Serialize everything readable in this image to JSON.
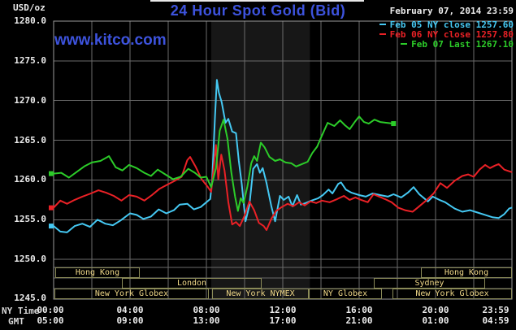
{
  "header": {
    "unit_label": "USD/oz",
    "title": "24 Hour Spot Gold (Bid)",
    "datetime": "February 07, 2014 23:59",
    "watermark": "www.kitco.com"
  },
  "legend": [
    {
      "text": "Feb 05 NY close 1257.60",
      "color": "#45c8f2"
    },
    {
      "text": "Feb 06 NY close 1257.80",
      "color": "#ea2126"
    },
    {
      "text": "Feb 07 Last 1267.10",
      "color": "#2ccc29"
    }
  ],
  "y_axis": {
    "labels": [
      "1280.0",
      "1275.0",
      "1270.0",
      "1265.0",
      "1260.0",
      "1255.0",
      "1250.0",
      "1245.0"
    ]
  },
  "x_axis": {
    "ny_label": "NY Time",
    "gmt_label": "GMT",
    "ny_ticks": [
      "00:00",
      "04:00",
      "08:00",
      "12:00",
      "16:00",
      "20:00",
      "23:59"
    ],
    "gmt_ticks": [
      "05:00",
      "09:00",
      "13:00",
      "17:00",
      "21:00",
      "01:00",
      "04:59"
    ]
  },
  "sessions": {
    "hong_kong_am": "Hong Kong",
    "hong_kong_pm": "Hong Kong",
    "london": "London",
    "sydney": "Sydney",
    "new_york_globex_early": "New York Globex",
    "new_york_nymex": "New York NYMEX",
    "ny_globex": "NY Globex",
    "new_york_globex_late": "New York Globex"
  },
  "chart_data": {
    "type": "line",
    "title": "24 Hour Spot Gold (Bid)",
    "ylabel": "USD/oz",
    "x_unit": "hours, NY time (00:00-23:59)",
    "xlim": [
      0,
      24
    ],
    "ylim": [
      1245,
      1280
    ],
    "y_tick_interval": 5,
    "x_gridline_interval_hours": 2,
    "grid": true,
    "legend_position": "top-right",
    "highlight_band_hours": [
      8.25,
      13.42
    ],
    "highlight_band_label": "New York NYMEX session",
    "colors": {
      "background": "#000000",
      "grid": "#6b6b6b",
      "border": "#9a9a9a",
      "band": "#171717",
      "title_blue": "#3d53dd",
      "session_border": "#8a8a58",
      "session_text": "#f0d888"
    },
    "series": [
      {
        "name": "Feb 05 NY close",
        "close_value": 1257.6,
        "color": "#45c8f2",
        "points": [
          [
            0,
            1254.2
          ],
          [
            0.35,
            1253.5
          ],
          [
            0.7,
            1253.4
          ],
          [
            1.1,
            1254.2
          ],
          [
            1.5,
            1254.5
          ],
          [
            1.9,
            1254.1
          ],
          [
            2.3,
            1255.0
          ],
          [
            2.7,
            1254.5
          ],
          [
            3.1,
            1254.3
          ],
          [
            3.5,
            1254.9
          ],
          [
            4.0,
            1255.8
          ],
          [
            4.35,
            1255.6
          ],
          [
            4.7,
            1255.1
          ],
          [
            5.1,
            1255.4
          ],
          [
            5.5,
            1256.3
          ],
          [
            5.9,
            1255.8
          ],
          [
            6.3,
            1256.2
          ],
          [
            6.6,
            1256.9
          ],
          [
            7.0,
            1257.0
          ],
          [
            7.35,
            1256.3
          ],
          [
            7.7,
            1256.6
          ],
          [
            8.0,
            1257.2
          ],
          [
            8.2,
            1257.6
          ],
          [
            8.3,
            1260.0
          ],
          [
            8.45,
            1268.0
          ],
          [
            8.55,
            1272.6
          ],
          [
            8.65,
            1271.0
          ],
          [
            8.8,
            1269.8
          ],
          [
            9.0,
            1267.2
          ],
          [
            9.15,
            1267.7
          ],
          [
            9.35,
            1266.1
          ],
          [
            9.55,
            1265.9
          ],
          [
            9.7,
            1262.4
          ],
          [
            9.85,
            1259.5
          ],
          [
            10.05,
            1254.8
          ],
          [
            10.25,
            1256.8
          ],
          [
            10.45,
            1261.4
          ],
          [
            10.65,
            1262.0
          ],
          [
            10.8,
            1260.9
          ],
          [
            10.95,
            1261.5
          ],
          [
            11.15,
            1259.6
          ],
          [
            11.4,
            1256.7
          ],
          [
            11.6,
            1254.8
          ],
          [
            11.85,
            1258.0
          ],
          [
            12.05,
            1257.5
          ],
          [
            12.3,
            1257.9
          ],
          [
            12.5,
            1256.7
          ],
          [
            12.75,
            1258.1
          ],
          [
            12.95,
            1256.9
          ],
          [
            13.2,
            1257.1
          ],
          [
            13.5,
            1257.4
          ],
          [
            13.85,
            1257.7
          ],
          [
            14.1,
            1258.1
          ],
          [
            14.4,
            1258.8
          ],
          [
            14.6,
            1258.3
          ],
          [
            14.9,
            1259.5
          ],
          [
            15.05,
            1259.7
          ],
          [
            15.3,
            1258.8
          ],
          [
            15.6,
            1258.4
          ],
          [
            16.0,
            1258.1
          ],
          [
            16.35,
            1257.9
          ],
          [
            16.7,
            1258.3
          ],
          [
            17.1,
            1258.1
          ],
          [
            17.5,
            1257.9
          ],
          [
            17.8,
            1258.2
          ],
          [
            18.2,
            1257.8
          ],
          [
            18.55,
            1258.4
          ],
          [
            18.85,
            1259.1
          ],
          [
            19.15,
            1258.2
          ],
          [
            19.6,
            1257.3
          ],
          [
            19.85,
            1257.9
          ],
          [
            20.2,
            1257.5
          ],
          [
            20.5,
            1257.2
          ],
          [
            21.0,
            1256.4
          ],
          [
            21.4,
            1256.0
          ],
          [
            21.8,
            1256.2
          ],
          [
            22.2,
            1255.9
          ],
          [
            22.6,
            1255.6
          ],
          [
            23.0,
            1255.3
          ],
          [
            23.3,
            1255.2
          ],
          [
            23.6,
            1255.7
          ],
          [
            23.85,
            1256.4
          ],
          [
            23.98,
            1256.5
          ]
        ]
      },
      {
        "name": "Feb 06 NY close",
        "close_value": 1257.8,
        "color": "#ea2126",
        "points": [
          [
            0,
            1256.5
          ],
          [
            0.35,
            1257.4
          ],
          [
            0.7,
            1257.0
          ],
          [
            1.1,
            1257.5
          ],
          [
            1.5,
            1257.9
          ],
          [
            1.95,
            1258.3
          ],
          [
            2.35,
            1258.7
          ],
          [
            2.75,
            1258.4
          ],
          [
            3.15,
            1258.0
          ],
          [
            3.55,
            1257.4
          ],
          [
            3.95,
            1258.1
          ],
          [
            4.35,
            1257.9
          ],
          [
            4.75,
            1257.4
          ],
          [
            5.15,
            1258.1
          ],
          [
            5.55,
            1258.9
          ],
          [
            5.95,
            1259.4
          ],
          [
            6.35,
            1259.9
          ],
          [
            6.7,
            1260.4
          ],
          [
            7.0,
            1262.5
          ],
          [
            7.15,
            1262.9
          ],
          [
            7.45,
            1261.6
          ],
          [
            7.75,
            1260.1
          ],
          [
            8.05,
            1259.2
          ],
          [
            8.25,
            1258.5
          ],
          [
            8.4,
            1262.0
          ],
          [
            8.5,
            1264.4
          ],
          [
            8.62,
            1260.1
          ],
          [
            8.78,
            1263.2
          ],
          [
            8.95,
            1261.2
          ],
          [
            9.15,
            1257.2
          ],
          [
            9.35,
            1254.4
          ],
          [
            9.55,
            1254.7
          ],
          [
            9.75,
            1254.2
          ],
          [
            10.0,
            1255.5
          ],
          [
            10.25,
            1257.3
          ],
          [
            10.5,
            1256.2
          ],
          [
            10.75,
            1254.6
          ],
          [
            11.0,
            1254.2
          ],
          [
            11.15,
            1253.7
          ],
          [
            11.4,
            1255.1
          ],
          [
            11.65,
            1256.1
          ],
          [
            11.95,
            1256.6
          ],
          [
            12.25,
            1257.0
          ],
          [
            12.55,
            1256.7
          ],
          [
            12.85,
            1257.2
          ],
          [
            13.15,
            1256.8
          ],
          [
            13.45,
            1257.3
          ],
          [
            13.75,
            1257.1
          ],
          [
            14.05,
            1257.4
          ],
          [
            14.45,
            1257.2
          ],
          [
            14.85,
            1257.6
          ],
          [
            15.2,
            1258.0
          ],
          [
            15.5,
            1257.5
          ],
          [
            15.8,
            1257.8
          ],
          [
            16.1,
            1257.5
          ],
          [
            16.45,
            1257.2
          ],
          [
            16.75,
            1258.2
          ],
          [
            17.05,
            1257.9
          ],
          [
            17.35,
            1257.6
          ],
          [
            17.7,
            1257.2
          ],
          [
            18.05,
            1256.5
          ],
          [
            18.4,
            1256.2
          ],
          [
            18.8,
            1256.0
          ],
          [
            19.1,
            1256.6
          ],
          [
            19.5,
            1257.4
          ],
          [
            19.9,
            1258.3
          ],
          [
            20.25,
            1259.6
          ],
          [
            20.6,
            1259.0
          ],
          [
            21.0,
            1259.9
          ],
          [
            21.4,
            1260.5
          ],
          [
            21.7,
            1260.7
          ],
          [
            22.0,
            1260.4
          ],
          [
            22.3,
            1261.3
          ],
          [
            22.6,
            1261.9
          ],
          [
            22.85,
            1261.5
          ],
          [
            23.1,
            1261.8
          ],
          [
            23.3,
            1262.0
          ],
          [
            23.6,
            1261.3
          ],
          [
            23.98,
            1261.0
          ]
        ]
      },
      {
        "name": "Feb 07 Last",
        "close_value": 1267.1,
        "color": "#2ccc29",
        "points": [
          [
            0,
            1260.8
          ],
          [
            0.4,
            1260.9
          ],
          [
            0.8,
            1260.3
          ],
          [
            1.2,
            1261.0
          ],
          [
            1.6,
            1261.7
          ],
          [
            2.0,
            1262.2
          ],
          [
            2.45,
            1262.4
          ],
          [
            2.9,
            1263.0
          ],
          [
            3.25,
            1261.6
          ],
          [
            3.6,
            1261.2
          ],
          [
            3.95,
            1261.9
          ],
          [
            4.35,
            1261.5
          ],
          [
            4.75,
            1260.9
          ],
          [
            5.1,
            1260.5
          ],
          [
            5.45,
            1261.3
          ],
          [
            5.85,
            1260.7
          ],
          [
            6.25,
            1260.1
          ],
          [
            6.65,
            1260.4
          ],
          [
            7.05,
            1261.4
          ],
          [
            7.4,
            1260.9
          ],
          [
            7.7,
            1260.3
          ],
          [
            8.0,
            1260.4
          ],
          [
            8.25,
            1259.1
          ],
          [
            8.5,
            1261.5
          ],
          [
            8.7,
            1266.2
          ],
          [
            8.9,
            1267.6
          ],
          [
            9.1,
            1265.2
          ],
          [
            9.3,
            1261.0
          ],
          [
            9.5,
            1257.9
          ],
          [
            9.65,
            1256.1
          ],
          [
            9.8,
            1257.7
          ],
          [
            9.95,
            1257.1
          ],
          [
            10.15,
            1259.2
          ],
          [
            10.35,
            1262.1
          ],
          [
            10.5,
            1263.0
          ],
          [
            10.65,
            1262.4
          ],
          [
            10.85,
            1264.7
          ],
          [
            11.05,
            1264.1
          ],
          [
            11.3,
            1262.9
          ],
          [
            11.6,
            1262.4
          ],
          [
            11.85,
            1262.6
          ],
          [
            12.15,
            1262.2
          ],
          [
            12.45,
            1262.1
          ],
          [
            12.7,
            1261.7
          ],
          [
            13.0,
            1262.0
          ],
          [
            13.3,
            1262.3
          ],
          [
            13.55,
            1263.4
          ],
          [
            13.8,
            1264.2
          ],
          [
            14.05,
            1265.6
          ],
          [
            14.35,
            1267.2
          ],
          [
            14.7,
            1266.8
          ],
          [
            15.0,
            1267.5
          ],
          [
            15.25,
            1266.9
          ],
          [
            15.5,
            1266.4
          ],
          [
            15.8,
            1267.4
          ],
          [
            16.0,
            1268.0
          ],
          [
            16.25,
            1267.3
          ],
          [
            16.5,
            1267.1
          ],
          [
            16.8,
            1267.6
          ],
          [
            17.1,
            1267.3
          ],
          [
            17.45,
            1267.2
          ],
          [
            17.8,
            1267.1
          ]
        ]
      }
    ]
  }
}
